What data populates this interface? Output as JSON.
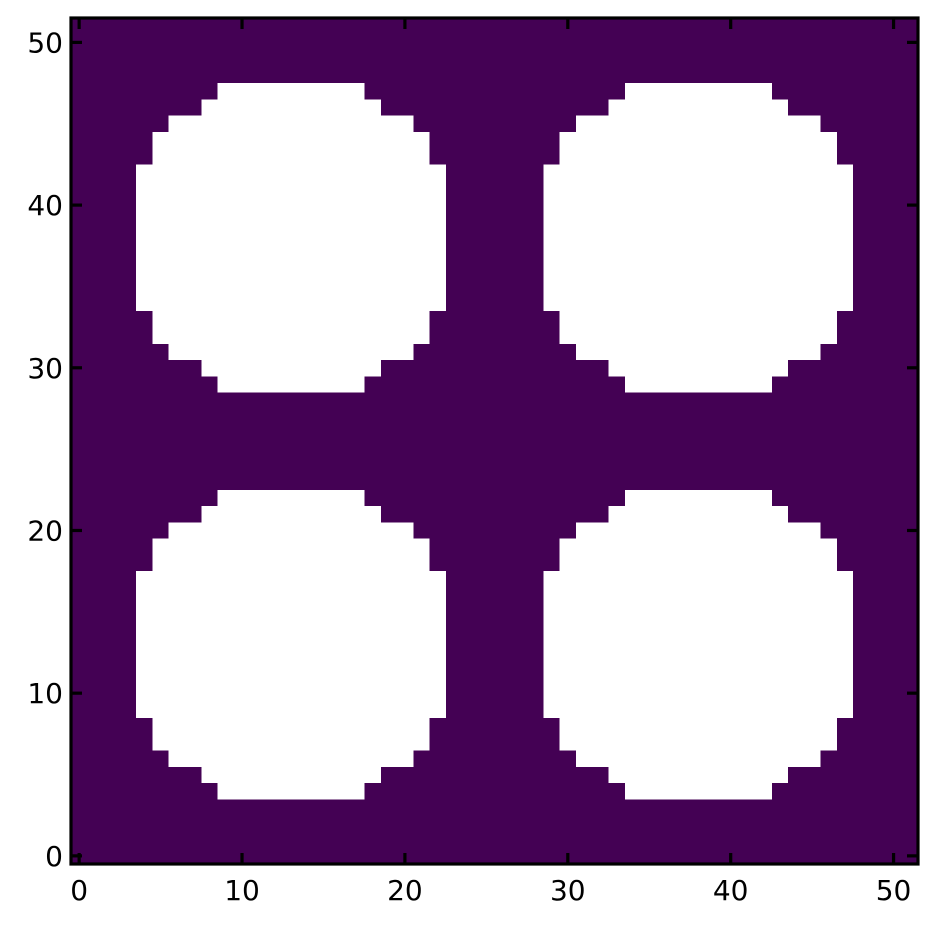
{
  "chart_data": {
    "type": "heatmap",
    "title": "",
    "xlabel": "",
    "ylabel": "",
    "xlim": [
      -0.5,
      51.5
    ],
    "ylim": [
      -0.5,
      51.5
    ],
    "grid": false,
    "legend": "none",
    "colors": {
      "background": "#440154",
      "hole": "#ffffff",
      "axis": "#000000"
    },
    "x_ticks": [
      {
        "value": 0,
        "label": "0"
      },
      {
        "value": 10,
        "label": "10"
      },
      {
        "value": 20,
        "label": "20"
      },
      {
        "value": 30,
        "label": "30"
      },
      {
        "value": 40,
        "label": "40"
      },
      {
        "value": 50,
        "label": "50"
      }
    ],
    "y_ticks": [
      {
        "value": 0,
        "label": "0"
      },
      {
        "value": 10,
        "label": "10"
      },
      {
        "value": 20,
        "label": "20"
      },
      {
        "value": 30,
        "label": "30"
      },
      {
        "value": 40,
        "label": "40"
      },
      {
        "value": 50,
        "label": "50"
      }
    ],
    "grid_size": [
      52,
      52
    ],
    "values_legend": {
      "0": "dark background",
      "1": "white hole"
    },
    "holes": [
      {
        "name": "bottom-left",
        "rows": [
          {
            "y": [
              4,
              4
            ],
            "x": [
              9,
              17
            ]
          },
          {
            "y": [
              5,
              5
            ],
            "x": [
              8,
              18
            ]
          },
          {
            "y": [
              6,
              6
            ],
            "x": [
              6,
              20
            ]
          },
          {
            "y": [
              7,
              8
            ],
            "x": [
              5,
              21
            ]
          },
          {
            "y": [
              9,
              9
            ],
            "x": [
              4,
              22
            ]
          },
          {
            "y": [
              10,
              16
            ],
            "x": [
              4,
              22
            ]
          },
          {
            "y": [
              17,
              17
            ],
            "x": [
              4,
              22
            ]
          },
          {
            "y": [
              18,
              19
            ],
            "x": [
              5,
              21
            ]
          },
          {
            "y": [
              20,
              20
            ],
            "x": [
              6,
              20
            ]
          },
          {
            "y": [
              21,
              21
            ],
            "x": [
              8,
              18
            ]
          },
          {
            "y": [
              22,
              22
            ],
            "x": [
              9,
              17
            ]
          }
        ]
      },
      {
        "name": "bottom-right",
        "rows": [
          {
            "y": [
              4,
              4
            ],
            "x": [
              34,
              42
            ]
          },
          {
            "y": [
              5,
              5
            ],
            "x": [
              33,
              43
            ]
          },
          {
            "y": [
              6,
              6
            ],
            "x": [
              31,
              45
            ]
          },
          {
            "y": [
              7,
              8
            ],
            "x": [
              30,
              46
            ]
          },
          {
            "y": [
              9,
              9
            ],
            "x": [
              29,
              47
            ]
          },
          {
            "y": [
              10,
              16
            ],
            "x": [
              29,
              47
            ]
          },
          {
            "y": [
              17,
              17
            ],
            "x": [
              29,
              47
            ]
          },
          {
            "y": [
              18,
              19
            ],
            "x": [
              30,
              46
            ]
          },
          {
            "y": [
              20,
              20
            ],
            "x": [
              31,
              45
            ]
          },
          {
            "y": [
              21,
              21
            ],
            "x": [
              33,
              43
            ]
          },
          {
            "y": [
              22,
              22
            ],
            "x": [
              34,
              42
            ]
          }
        ]
      },
      {
        "name": "top-left",
        "rows": [
          {
            "y": [
              29,
              29
            ],
            "x": [
              9,
              17
            ]
          },
          {
            "y": [
              30,
              30
            ],
            "x": [
              8,
              18
            ]
          },
          {
            "y": [
              31,
              31
            ],
            "x": [
              6,
              20
            ]
          },
          {
            "y": [
              32,
              33
            ],
            "x": [
              5,
              21
            ]
          },
          {
            "y": [
              34,
              34
            ],
            "x": [
              4,
              22
            ]
          },
          {
            "y": [
              35,
              41
            ],
            "x": [
              4,
              22
            ]
          },
          {
            "y": [
              42,
              42
            ],
            "x": [
              4,
              22
            ]
          },
          {
            "y": [
              43,
              44
            ],
            "x": [
              5,
              21
            ]
          },
          {
            "y": [
              45,
              45
            ],
            "x": [
              6,
              20
            ]
          },
          {
            "y": [
              46,
              46
            ],
            "x": [
              8,
              18
            ]
          },
          {
            "y": [
              47,
              47
            ],
            "x": [
              9,
              17
            ]
          }
        ]
      },
      {
        "name": "top-right",
        "rows": [
          {
            "y": [
              29,
              29
            ],
            "x": [
              34,
              42
            ]
          },
          {
            "y": [
              30,
              30
            ],
            "x": [
              33,
              43
            ]
          },
          {
            "y": [
              31,
              31
            ],
            "x": [
              31,
              45
            ]
          },
          {
            "y": [
              32,
              33
            ],
            "x": [
              30,
              46
            ]
          },
          {
            "y": [
              34,
              34
            ],
            "x": [
              29,
              47
            ]
          },
          {
            "y": [
              35,
              41
            ],
            "x": [
              29,
              47
            ]
          },
          {
            "y": [
              42,
              42
            ],
            "x": [
              29,
              47
            ]
          },
          {
            "y": [
              43,
              44
            ],
            "x": [
              30,
              46
            ]
          },
          {
            "y": [
              45,
              45
            ],
            "x": [
              31,
              45
            ]
          },
          {
            "y": [
              46,
              46
            ],
            "x": [
              33,
              43
            ]
          },
          {
            "y": [
              47,
              47
            ],
            "x": [
              34,
              42
            ]
          }
        ]
      }
    ]
  }
}
